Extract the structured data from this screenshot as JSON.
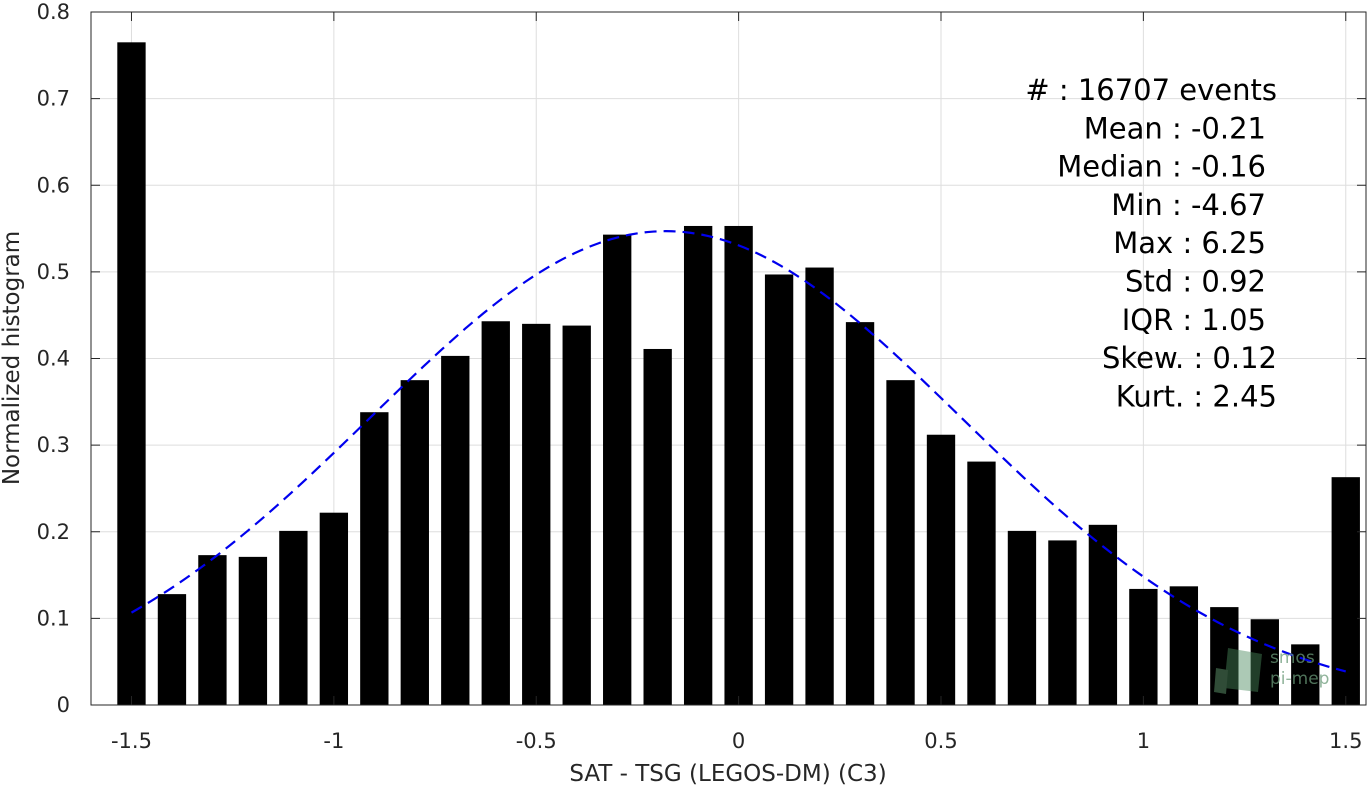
{
  "chart_data": {
    "type": "bar",
    "title": "",
    "xlabel": "SAT - TSG (LEGOS-DM) (C3)",
    "ylabel": "Normalized histogram",
    "xlim": [
      -1.6,
      1.55
    ],
    "ylim": [
      0,
      0.8
    ],
    "xticks": [
      -1.5,
      -1,
      -0.5,
      0,
      0.5,
      1,
      1.5
    ],
    "xtick_labels": [
      "-1.5",
      "-1",
      "-0.5",
      "0",
      "0.5",
      "1",
      "1.5"
    ],
    "yticks": [
      0,
      0.1,
      0.2,
      0.3,
      0.4,
      0.5,
      0.6,
      0.7,
      0.8
    ],
    "ytick_labels": [
      "0",
      "0.1",
      "0.2",
      "0.3",
      "0.4",
      "0.5",
      "0.6",
      "0.7",
      "0.8"
    ],
    "grid": true,
    "bar_color": "#000000",
    "bin_centers": [
      -1.5,
      -1.4,
      -1.3,
      -1.2,
      -1.1,
      -1.0,
      -0.9,
      -0.8,
      -0.7,
      -0.6,
      -0.5,
      -0.4,
      -0.3,
      -0.2,
      -0.1,
      0.0,
      0.1,
      0.2,
      0.3,
      0.4,
      0.5,
      0.6,
      0.7,
      0.8,
      0.9,
      1.0,
      1.1,
      1.2,
      1.3,
      1.4,
      1.5
    ],
    "values": [
      0.765,
      0.128,
      0.173,
      0.171,
      0.201,
      0.222,
      0.338,
      0.375,
      0.403,
      0.443,
      0.44,
      0.438,
      0.543,
      0.411,
      0.553,
      0.553,
      0.497,
      0.505,
      0.442,
      0.375,
      0.312,
      0.281,
      0.201,
      0.19,
      0.208,
      0.134,
      0.137,
      0.113,
      0.099,
      0.07,
      0.263
    ],
    "fit_curve": {
      "style": "dashed",
      "color": "#0000ee",
      "mean": -0.18,
      "std": 0.73,
      "amplitude": 0.547,
      "x_range": [
        -1.5,
        1.5
      ]
    },
    "stats": [
      "#  : 16707 events",
      "Mean : -0.21",
      "Median : -0.16",
      "Min : -4.67",
      "Max : 6.25",
      "Std : 0.92",
      "IQR : 1.05",
      "Skew. : 0.12",
      "Kurt. : 2.45"
    ]
  },
  "logo": {
    "line1": "smos",
    "line2": "pi-mep",
    "color": "#4a8a5c"
  }
}
